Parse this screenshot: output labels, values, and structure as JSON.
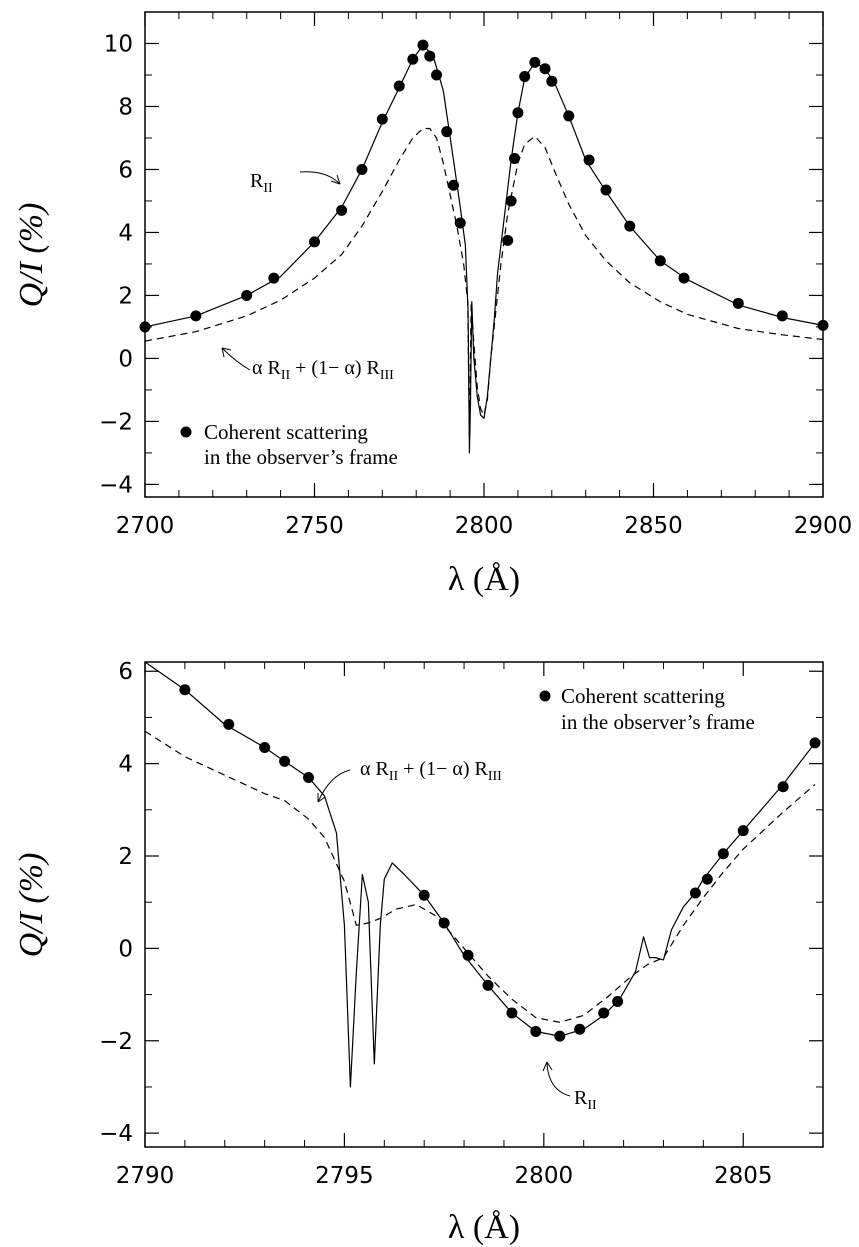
{
  "chart_data": [
    {
      "type": "line",
      "xlabel": "λ (Å)",
      "ylabel": "Q/I (%)",
      "xlim": [
        2700,
        2900
      ],
      "ylim": [
        -4.4,
        11
      ],
      "xticks": [
        2700,
        2750,
        2800,
        2850,
        2900
      ],
      "yticks": [
        -4,
        -2,
        0,
        2,
        4,
        6,
        8,
        10
      ],
      "series": [
        {
          "style": "solid",
          "x": [
            2700,
            2715,
            2730,
            2740,
            2750,
            2758,
            2764,
            2770,
            2775,
            2779,
            2782,
            2785,
            2788,
            2791,
            2793,
            2794.5,
            2795.3,
            2795.7,
            2796.0,
            2796.4,
            2797.0,
            2798.0,
            2799.0,
            2800.0,
            2801.0,
            2802.0,
            2803.0,
            2804.0,
            2806.0,
            2808.0,
            2810.0,
            2812.0,
            2815.0,
            2818.0,
            2821.0,
            2825.0,
            2830.0,
            2836.0,
            2843.0,
            2852.0,
            2860.0,
            2875.0,
            2888.0,
            2900.0
          ],
          "y": [
            1.0,
            1.35,
            2.0,
            2.6,
            3.7,
            4.8,
            6.0,
            7.5,
            8.6,
            9.5,
            9.95,
            9.6,
            8.5,
            6.3,
            4.8,
            3.6,
            1.5,
            -3.0,
            -1.5,
            1.8,
            0.0,
            -1.2,
            -1.8,
            -1.9,
            -1.2,
            0.0,
            1.2,
            2.7,
            4.5,
            6.3,
            7.8,
            8.9,
            9.4,
            9.2,
            8.7,
            7.7,
            6.3,
            5.3,
            4.2,
            3.1,
            2.5,
            1.7,
            1.3,
            1.05
          ]
        },
        {
          "name": "α R_II + (1− α) R_III",
          "style": "dashed",
          "x": [
            2700,
            2715,
            2730,
            2740,
            2750,
            2758,
            2764,
            2770,
            2775,
            2779,
            2782,
            2784,
            2786,
            2788,
            2790,
            2792,
            2794,
            2795.2,
            2795.7,
            2796.2,
            2797.0,
            2798.0,
            2799.0,
            2800.0,
            2801.0,
            2802.0,
            2803.0,
            2805.0,
            2807.0,
            2810.0,
            2812.0,
            2815.0,
            2818.0,
            2821.0,
            2825.0,
            2830.0,
            2836.0,
            2843.0,
            2852.0,
            2860.0,
            2875.0,
            2888.0,
            2900.0
          ],
          "y": [
            0.55,
            0.85,
            1.35,
            1.85,
            2.55,
            3.3,
            4.2,
            5.3,
            6.3,
            7.0,
            7.3,
            7.3,
            7.0,
            6.2,
            5.2,
            4.2,
            3.0,
            1.8,
            -2.5,
            1.7,
            0.5,
            -0.9,
            -1.6,
            -1.8,
            -1.3,
            0.0,
            1.0,
            3.0,
            4.6,
            6.2,
            6.8,
            7.05,
            6.7,
            5.9,
            4.9,
            3.9,
            3.1,
            2.4,
            1.8,
            1.4,
            0.95,
            0.75,
            0.6
          ]
        },
        {
          "name": "Coherent scattering in the observer’s frame",
          "style": "points",
          "x": [
            2700,
            2715,
            2730,
            2738,
            2750,
            2758,
            2764,
            2770,
            2775,
            2779,
            2782,
            2784,
            2786,
            2789,
            2791,
            2793,
            2807,
            2808,
            2809,
            2810,
            2812,
            2815,
            2818,
            2820,
            2825,
            2831,
            2836,
            2843,
            2852,
            2859,
            2875,
            2888,
            2900
          ],
          "y": [
            1.0,
            1.35,
            2.0,
            2.55,
            3.7,
            4.7,
            6.0,
            7.6,
            8.65,
            9.5,
            9.95,
            9.6,
            9.0,
            7.2,
            5.5,
            4.3,
            3.75,
            5.0,
            6.35,
            7.8,
            8.95,
            9.4,
            9.2,
            8.8,
            7.7,
            6.3,
            5.35,
            4.2,
            3.1,
            2.55,
            1.75,
            1.35,
            1.05
          ]
        }
      ],
      "annotations": [
        {
          "text": "R_II",
          "x": 2752,
          "y": 6.2
        },
        {
          "text": "α R_II + (1− α) R_III",
          "x": 2735,
          "y": -0.1
        }
      ],
      "legend": {
        "placement": "bottom-left"
      }
    },
    {
      "type": "line",
      "xlabel": "λ (Å)",
      "ylabel": "Q/I (%)",
      "xlim": [
        2790,
        2807
      ],
      "ylim": [
        -4.3,
        6.2
      ],
      "xticks": [
        2790,
        2795,
        2800,
        2805
      ],
      "yticks": [
        -4,
        -2,
        0,
        2,
        4,
        6
      ],
      "series": [
        {
          "style": "solid",
          "x": [
            2790.0,
            2791.0,
            2792.0,
            2793.0,
            2793.5,
            2794.1,
            2794.5,
            2794.8,
            2795.0,
            2795.15,
            2795.3,
            2795.45,
            2795.6,
            2795.75,
            2795.9,
            2796.0,
            2796.2,
            2796.5,
            2797.0,
            2797.5,
            2798.0,
            2798.6,
            2799.2,
            2799.8,
            2800.4,
            2801.0,
            2801.5,
            2801.9,
            2802.3,
            2802.5,
            2802.65,
            2802.8,
            2803.0,
            2803.2,
            2803.5,
            2803.8,
            2804.0,
            2804.5,
            2805.0,
            2806.0,
            2806.8
          ],
          "y": [
            6.2,
            5.6,
            4.85,
            4.35,
            4.05,
            3.7,
            3.3,
            2.5,
            0.5,
            -3.0,
            -0.5,
            1.6,
            1.0,
            -2.5,
            0.5,
            1.5,
            1.85,
            1.6,
            1.15,
            0.55,
            -0.15,
            -0.8,
            -1.4,
            -1.8,
            -1.9,
            -1.75,
            -1.45,
            -1.1,
            -0.5,
            0.25,
            -0.2,
            -0.2,
            -0.25,
            0.4,
            0.9,
            1.2,
            1.5,
            2.05,
            2.55,
            3.55,
            4.45
          ]
        },
        {
          "name": "α R_II + (1− α) R_III",
          "style": "dashed",
          "x": [
            2790.0,
            2791.0,
            2792.0,
            2793.0,
            2793.5,
            2794.1,
            2794.5,
            2795.0,
            2795.3,
            2795.6,
            2795.9,
            2796.3,
            2796.8,
            2797.3,
            2798.0,
            2798.6,
            2799.2,
            2799.8,
            2800.4,
            2801.0,
            2801.6,
            2802.2,
            2802.6,
            2803.0,
            2803.5,
            2804.0,
            2804.5,
            2805.0,
            2806.0,
            2806.8
          ],
          "y": [
            4.7,
            4.15,
            3.75,
            3.35,
            3.2,
            2.8,
            2.4,
            1.45,
            0.5,
            0.55,
            0.65,
            0.85,
            0.95,
            0.7,
            0.0,
            -0.6,
            -1.1,
            -1.5,
            -1.6,
            -1.45,
            -1.05,
            -0.6,
            -0.35,
            -0.2,
            0.5,
            1.1,
            1.65,
            2.15,
            2.95,
            3.55
          ]
        },
        {
          "name": "Coherent scattering in the observer’s frame",
          "style": "points",
          "x": [
            2791.0,
            2792.1,
            2793.0,
            2793.5,
            2794.1,
            2797.0,
            2797.5,
            2798.1,
            2798.6,
            2799.2,
            2799.8,
            2800.4,
            2800.9,
            2801.5,
            2801.85,
            2803.8,
            2804.1,
            2804.5,
            2805.0,
            2806.0,
            2806.8
          ],
          "y": [
            5.6,
            4.85,
            4.35,
            4.05,
            3.7,
            1.15,
            0.55,
            -0.15,
            -0.8,
            -1.4,
            -1.8,
            -1.9,
            -1.75,
            -1.4,
            -1.15,
            1.2,
            1.5,
            2.05,
            2.55,
            3.5,
            4.45
          ]
        }
      ],
      "annotations": [
        {
          "text": "α R_II + (1− α) R_III",
          "x": 2794,
          "y": 2.6
        },
        {
          "text": "R_II",
          "x": 2800.4,
          "y": -2.3
        }
      ],
      "legend": {
        "placement": "top-right"
      }
    }
  ]
}
